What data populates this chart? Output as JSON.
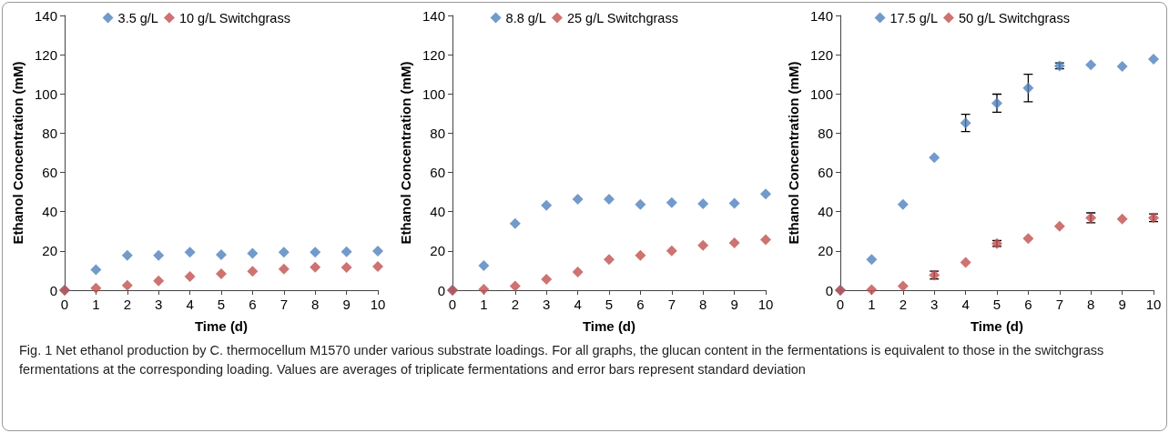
{
  "chart_data": [
    {
      "type": "scatter",
      "xlabel": "Time (d)",
      "ylabel": "Ethanol Concentration (mM)",
      "x": [
        0,
        1,
        2,
        3,
        4,
        5,
        6,
        7,
        8,
        9,
        10
      ],
      "xlim": [
        0,
        10
      ],
      "xticks": [
        0,
        1,
        2,
        3,
        4,
        5,
        6,
        7,
        8,
        9,
        10
      ],
      "ylim": [
        0,
        140
      ],
      "yticks": [
        0,
        20,
        40,
        60,
        80,
        100,
        120,
        140
      ],
      "grid": false,
      "legend": "top",
      "marker": "diamond",
      "annotations": [
        "Fig. 1 Net ethanol production by C. thermocellum M1570 under various substrate loadings. For all graphs, the glucan content in the fermentations is equivalent to those in the switchgrass fermentations at the corresponding loading. Values are averages of triplicate fermentations and error bars represent standard deviation"
      ],
      "series": [
        {
          "name": "3.5 g/L",
          "color": "#4f81bd",
          "values": [
            0,
            10.4,
            17.7,
            17.7,
            19.3,
            18.1,
            18.8,
            19.3,
            19.3,
            19.6,
            19.9
          ]
        },
        {
          "name": "10 g/L Switchgrass",
          "color": "#c0504d",
          "values": [
            0,
            1.1,
            2.4,
            4.8,
            6.9,
            8.3,
            9.6,
            10.8,
            11.7,
            11.6,
            12.0
          ]
        }
      ]
    },
    {
      "type": "scatter",
      "xlabel": "Time (d)",
      "ylabel": "Ethanol Concentration (mM)",
      "x": [
        0,
        1,
        2,
        3,
        4,
        5,
        6,
        7,
        8,
        9,
        10
      ],
      "xlim": [
        0,
        10
      ],
      "xticks": [
        0,
        1,
        2,
        3,
        4,
        5,
        6,
        7,
        8,
        9,
        10
      ],
      "ylim": [
        0,
        140
      ],
      "yticks": [
        0,
        20,
        40,
        60,
        80,
        100,
        120,
        140
      ],
      "grid": false,
      "legend": "top",
      "marker": "diamond",
      "series": [
        {
          "name": "8.8 g/L",
          "color": "#4f81bd",
          "values": [
            0,
            12.5,
            34.0,
            43.2,
            46.4,
            46.4,
            43.7,
            44.6,
            44.0,
            44.3,
            49.0
          ]
        },
        {
          "name": "25 g/L Switchgrass",
          "color": "#c0504d",
          "values": [
            0,
            0.5,
            2.1,
            5.6,
            9.3,
            15.6,
            17.7,
            20.1,
            22.8,
            24.1,
            25.7
          ]
        }
      ]
    },
    {
      "type": "scatter",
      "xlabel": "Time (d)",
      "ylabel": "Ethanol Concentration (mM)",
      "x": [
        0,
        1,
        2,
        3,
        4,
        5,
        6,
        7,
        8,
        9,
        10
      ],
      "xlim": [
        0,
        10
      ],
      "xticks": [
        0,
        1,
        2,
        3,
        4,
        5,
        6,
        7,
        8,
        9,
        10
      ],
      "ylim": [
        0,
        140
      ],
      "yticks": [
        0,
        20,
        40,
        60,
        80,
        100,
        120,
        140
      ],
      "grid": false,
      "legend": "top",
      "marker": "diamond",
      "series": [
        {
          "name": "17.5 g/L",
          "color": "#4f81bd",
          "values": [
            0,
            15.6,
            43.7,
            67.6,
            85.2,
            95.3,
            103.0,
            114.3,
            114.8,
            114.0,
            117.7
          ],
          "errors": [
            null,
            null,
            null,
            null,
            4.4,
            4.6,
            7,
            1.5,
            null,
            null,
            null
          ]
        },
        {
          "name": "50 g/L Switchgrass",
          "color": "#c0504d",
          "values": [
            0,
            0.2,
            2.1,
            7.7,
            14.1,
            23.8,
            26.3,
            32.6,
            36.9,
            36.3,
            36.9
          ],
          "errors": [
            null,
            null,
            null,
            2,
            null,
            1.5,
            null,
            null,
            2.5,
            null,
            2
          ]
        }
      ]
    }
  ]
}
